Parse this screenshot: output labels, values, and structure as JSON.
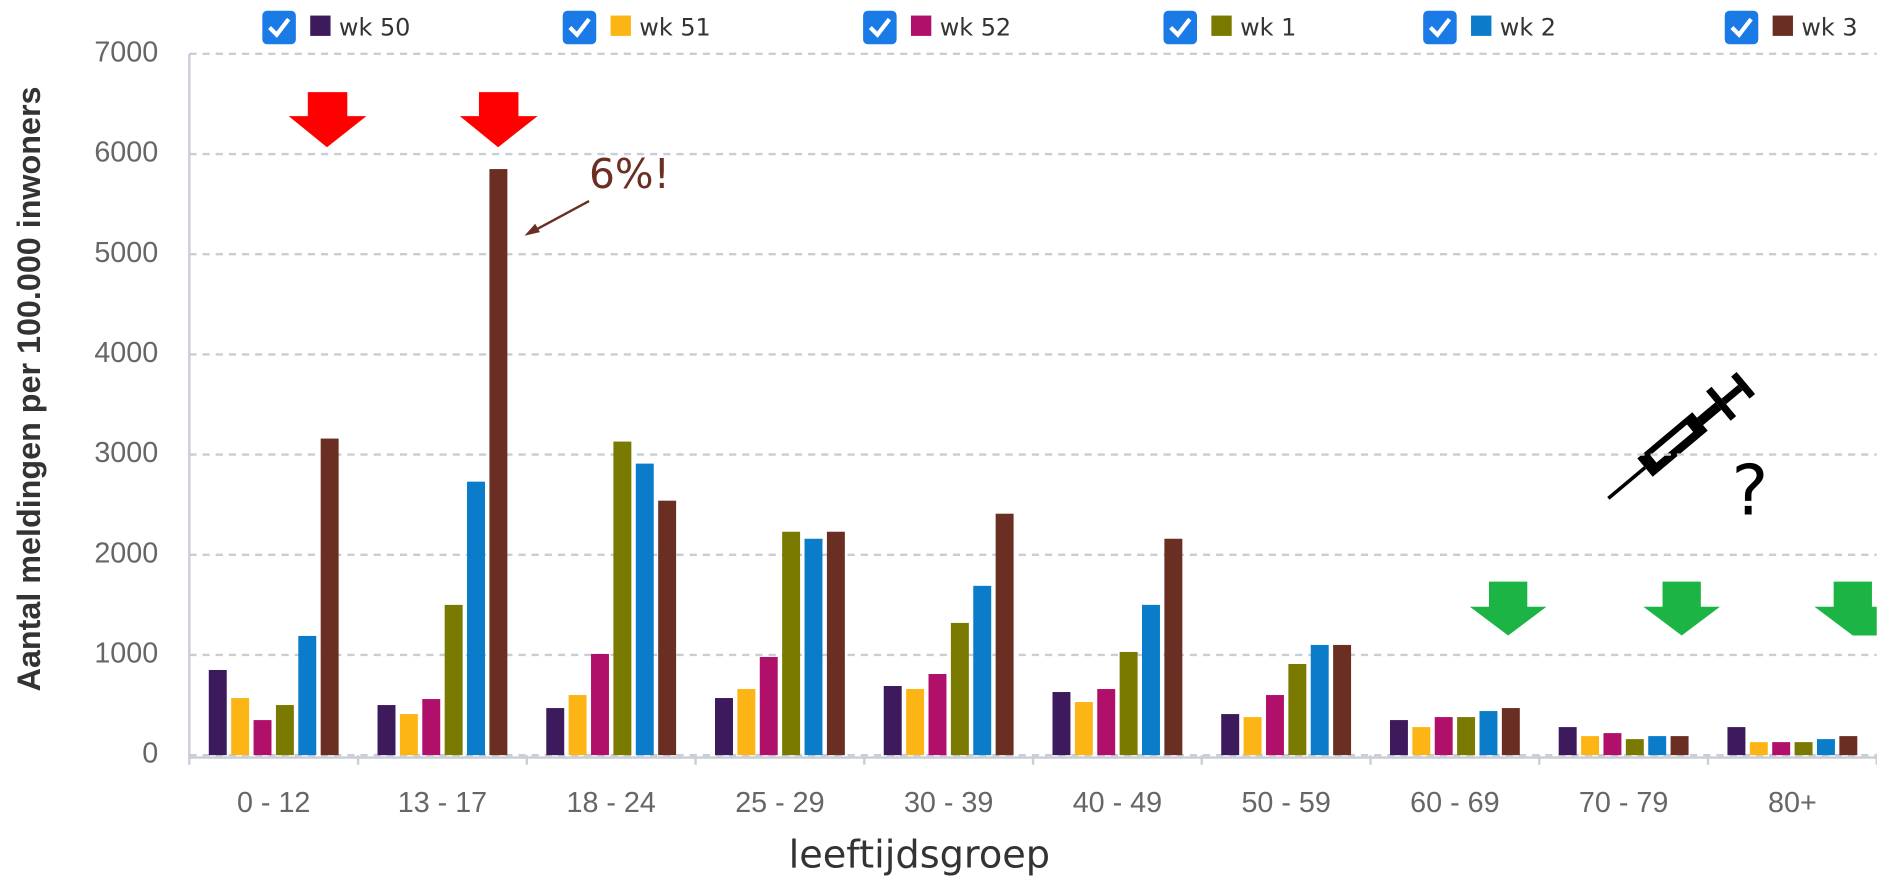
{
  "chart_data": {
    "type": "bar",
    "y_label": "Aantal meldingen per 100.000 inwoners",
    "x_label": "leeftijdsgroep",
    "categories": [
      "0 - 12",
      "13 - 17",
      "18 - 24",
      "25 - 29",
      "30 - 39",
      "40 - 49",
      "50 - 59",
      "60 - 69",
      "70 - 79",
      "80+"
    ],
    "series": [
      {
        "name": "wk 50",
        "color": "#3d1a5c",
        "values": [
          850,
          500,
          470,
          570,
          690,
          630,
          410,
          350,
          280,
          280
        ]
      },
      {
        "name": "wk 51",
        "color": "#fdb515",
        "values": [
          570,
          410,
          600,
          660,
          660,
          530,
          380,
          280,
          190,
          130
        ]
      },
      {
        "name": "wk 52",
        "color": "#b0106a",
        "values": [
          350,
          560,
          1010,
          980,
          810,
          660,
          600,
          380,
          220,
          130
        ]
      },
      {
        "name": "wk 1",
        "color": "#7a7a00",
        "values": [
          500,
          1500,
          3130,
          2230,
          1320,
          1030,
          910,
          380,
          160,
          130
        ]
      },
      {
        "name": "wk 2",
        "color": "#0a7cc9",
        "values": [
          1190,
          2730,
          2910,
          2160,
          1690,
          1500,
          1100,
          440,
          190,
          160
        ]
      },
      {
        "name": "wk 3",
        "color": "#6b2e22",
        "values": [
          3160,
          5850,
          2540,
          2230,
          2410,
          2160,
          1100,
          470,
          190,
          190
        ]
      }
    ],
    "ylim": [
      0,
      7000
    ],
    "yticks": [
      0,
      1000,
      2000,
      3000,
      4000,
      5000,
      6000,
      7000
    ],
    "grid": true,
    "legend": "top",
    "annotations": [
      "6%!",
      "?"
    ]
  }
}
